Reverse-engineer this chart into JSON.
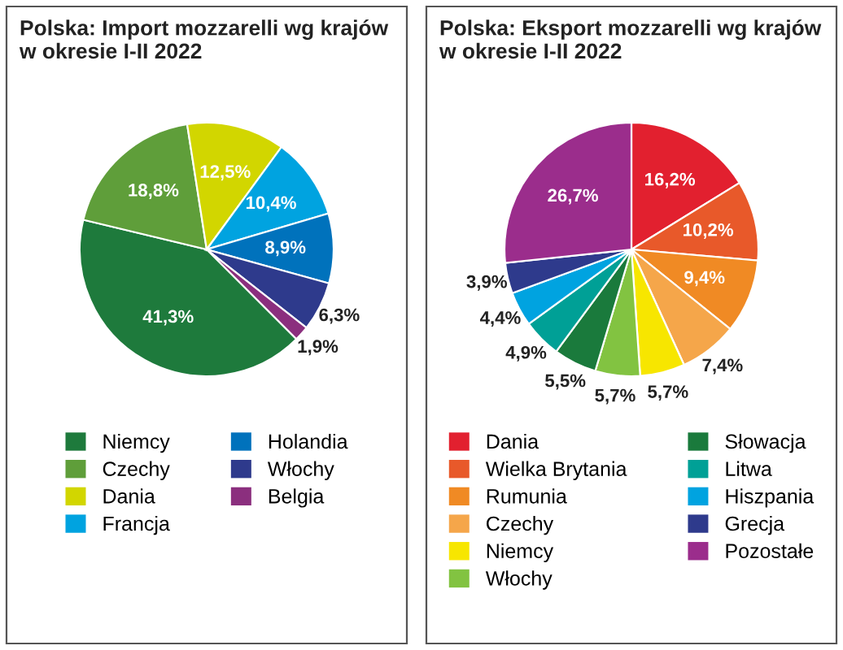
{
  "chart_data": [
    {
      "type": "pie",
      "title": "Polska: Import mozzarelli wg krajów\nw okresie I-II 2022",
      "categories": [
        "Niemcy",
        "Czechy",
        "Dania",
        "Francja",
        "Holandia",
        "Włochy",
        "Belgia"
      ],
      "values": [
        41.3,
        18.8,
        12.5,
        10.4,
        8.9,
        6.3,
        1.9
      ],
      "value_labels": [
        "41,3%",
        "18,8%",
        "12,5%",
        "10,4%",
        "8,9%",
        "6,3%",
        "1,9%"
      ],
      "colors": [
        "#1e7a3c",
        "#5f9e3a",
        "#d2d600",
        "#00a3e0",
        "#0072bc",
        "#2e3a8c",
        "#8b2f7e"
      ],
      "legend": "bottom"
    },
    {
      "type": "pie",
      "title": "Polska: Eksport mozzarelli wg krajów\nw okresie I-II 2022",
      "categories": [
        "Dania",
        "Wielka Brytania",
        "Rumunia",
        "Czechy",
        "Niemcy",
        "Włochy",
        "Słowacja",
        "Litwa",
        "Hiszpania",
        "Grecja",
        "Pozostałe"
      ],
      "values": [
        16.2,
        10.2,
        9.4,
        7.4,
        5.7,
        5.7,
        5.5,
        4.9,
        4.4,
        3.9,
        26.7
      ],
      "value_labels": [
        "16,2%",
        "10,2%",
        "9,4%",
        "7,4%",
        "5,7%",
        "5,7%",
        "5,5%",
        "4,9%",
        "4,4%",
        "3,9%",
        "26,7%"
      ],
      "colors": [
        "#e2202f",
        "#e8592a",
        "#f08a24",
        "#f5a64a",
        "#f7e600",
        "#82c341",
        "#1a7a3c",
        "#00a096",
        "#00a3e0",
        "#2e3a8c",
        "#9b2d8c"
      ],
      "legend": "bottom"
    }
  ]
}
